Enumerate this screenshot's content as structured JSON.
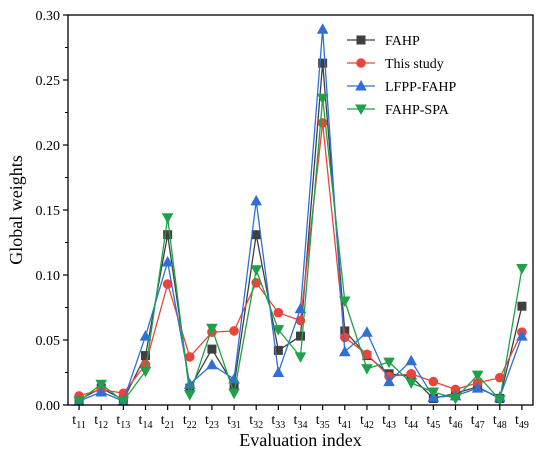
{
  "chart_data": {
    "type": "line",
    "xlabel": "Evaluation index",
    "ylabel": "Global weights",
    "categories": [
      {
        "base": "t",
        "sub": "11"
      },
      {
        "base": "t",
        "sub": "12"
      },
      {
        "base": "t",
        "sub": "13"
      },
      {
        "base": "t",
        "sub": "14"
      },
      {
        "base": "t",
        "sub": "21"
      },
      {
        "base": "t",
        "sub": "22"
      },
      {
        "base": "t",
        "sub": "23"
      },
      {
        "base": "t",
        "sub": "31"
      },
      {
        "base": "t",
        "sub": "32"
      },
      {
        "base": "t",
        "sub": "33"
      },
      {
        "base": "t",
        "sub": "34"
      },
      {
        "base": "t",
        "sub": "35"
      },
      {
        "base": "t",
        "sub": "41"
      },
      {
        "base": "t",
        "sub": "42"
      },
      {
        "base": "t",
        "sub": "43"
      },
      {
        "base": "t",
        "sub": "44"
      },
      {
        "base": "t",
        "sub": "45"
      },
      {
        "base": "t",
        "sub": "46"
      },
      {
        "base": "t",
        "sub": "47"
      },
      {
        "base": "t",
        "sub": "48"
      },
      {
        "base": "t",
        "sub": "49"
      }
    ],
    "ylim": [
      0,
      0.3
    ],
    "yticks": [
      "0.00",
      "0.05",
      "0.10",
      "0.15",
      "0.20",
      "0.25",
      "0.30"
    ],
    "legend_position": "top-right",
    "series": [
      {
        "name": "FAHP",
        "color": "#3f3f3f",
        "marker": "square",
        "values": [
          0.004,
          0.013,
          0.004,
          0.038,
          0.131,
          0.013,
          0.043,
          0.015,
          0.131,
          0.042,
          0.053,
          0.263,
          0.057,
          0.038,
          0.024,
          0.022,
          0.005,
          0.009,
          0.014,
          0.005,
          0.076
        ]
      },
      {
        "name": "This study",
        "color": "#e8463c",
        "marker": "circle",
        "values": [
          0.007,
          0.012,
          0.009,
          0.031,
          0.093,
          0.037,
          0.056,
          0.057,
          0.094,
          0.071,
          0.065,
          0.217,
          0.052,
          0.039,
          0.022,
          0.024,
          0.018,
          0.012,
          0.017,
          0.021,
          0.056
        ]
      },
      {
        "name": "LFPP-FAHP",
        "color": "#2f6fd6",
        "marker": "triangle-up",
        "values": [
          0.003,
          0.01,
          0.003,
          0.053,
          0.11,
          0.016,
          0.031,
          0.02,
          0.157,
          0.025,
          0.074,
          0.289,
          0.041,
          0.056,
          0.018,
          0.034,
          0.006,
          0.007,
          0.013,
          0.006,
          0.053
        ]
      },
      {
        "name": "FAHP-SPA",
        "color": "#1fa14a",
        "marker": "triangle-down",
        "values": [
          0.003,
          0.016,
          0.003,
          0.026,
          0.144,
          0.008,
          0.059,
          0.009,
          0.104,
          0.058,
          0.037,
          0.236,
          0.08,
          0.028,
          0.033,
          0.017,
          0.01,
          0.005,
          0.023,
          0.004,
          0.105
        ]
      }
    ]
  }
}
